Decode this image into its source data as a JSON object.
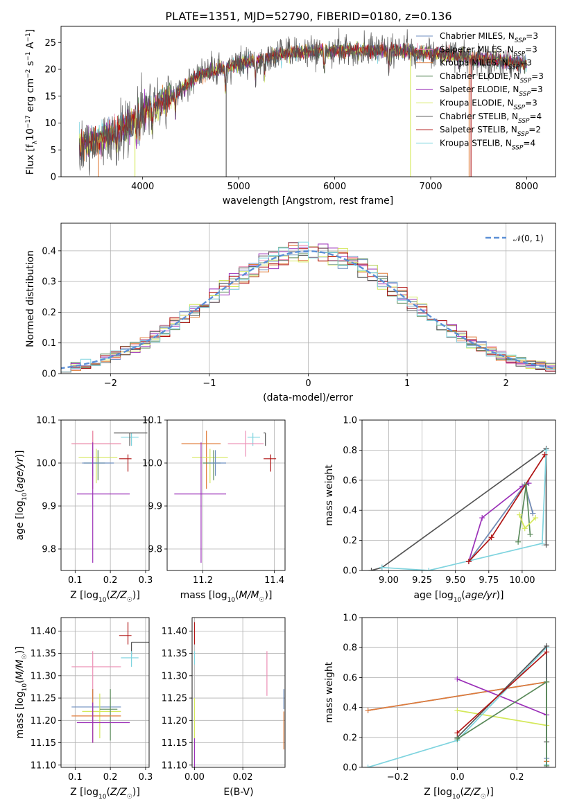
{
  "title": "PLATE=1351, MJD=52790, FIBERID=0180, z=0.136",
  "colors": {
    "chab_miles": "#6c8ebf",
    "salp_miles": "#ec8fb5",
    "krou_miles": "#e07b39",
    "chab_elodie": "#5a8a5a",
    "salp_elodie": "#9b30b8",
    "krou_elodie": "#d4e85a",
    "chab_stelib": "#555555",
    "salp_stelib": "#b01515",
    "krou_stelib": "#7fd4df",
    "gauss": "#5b8fd6"
  },
  "legend1": [
    {
      "key": "chab_miles",
      "label": "Chabrier MILES, NSSP=3"
    },
    {
      "key": "salp_miles",
      "label": "Salpeter MILES, NSSP=3"
    },
    {
      "key": "krou_miles",
      "label": "Kroupa MILES, NSSP=3"
    },
    {
      "key": "chab_elodie",
      "label": "Chabrier ELODIE, NSSP=3"
    },
    {
      "key": "salp_elodie",
      "label": "Salpeter ELODIE, NSSP=3"
    },
    {
      "key": "krou_elodie",
      "label": "Kroupa ELODIE, NSSP=3"
    },
    {
      "key": "chab_stelib",
      "label": "Chabrier STELIB, NSSP=4"
    },
    {
      "key": "salp_stelib",
      "label": "Salpeter STELIB, NSSP=2"
    },
    {
      "key": "krou_stelib",
      "label": "Kroupa STELIB, NSSP=4"
    }
  ],
  "legend2": {
    "label": "N(0,1)"
  },
  "chart_data": [
    {
      "id": "spectrum",
      "type": "line",
      "xlabel": "wavelength [Angstrom, rest frame]",
      "ylabel": "Flux [fλ10⁻¹⁷ erg cm⁻² s⁻¹ A⁻¹]",
      "xlim": [
        3150,
        8300
      ],
      "ylim": [
        0,
        28
      ],
      "xticks": [
        4000,
        5000,
        6000,
        7000,
        8000
      ],
      "yticks": [
        0,
        5,
        10,
        15,
        20,
        25
      ],
      "x_range": [
        3340,
        8000
      ],
      "continuum_x": [
        3340,
        3500,
        3800,
        4000,
        4300,
        4600,
        5000,
        5500,
        6000,
        6500,
        7000,
        7500,
        8000
      ],
      "continuum_y": [
        5.5,
        6.5,
        9,
        12,
        15,
        19,
        21,
        23,
        23.5,
        23.5,
        23,
        22,
        21
      ]
    },
    {
      "id": "residuals",
      "type": "bar",
      "xlabel": "(data-model)/error",
      "ylabel": "Normed distribution",
      "xlim": [
        -2.5,
        2.5
      ],
      "ylim": [
        0,
        0.49
      ],
      "xticks": [
        -2,
        -1,
        0,
        1,
        2
      ],
      "yticks": [
        0.0,
        0.1,
        0.2,
        0.3,
        0.4
      ],
      "bin_width": 0.1,
      "gaussian": {
        "mean": 0,
        "sigma": 1
      }
    },
    {
      "id": "age_vs_Z",
      "type": "scatter",
      "xlabel": "Z [log10(Z/Z☉)]",
      "ylabel": "age  [log10(age/yr)]",
      "xlim": [
        0.06,
        0.31
      ],
      "ylim": [
        9.75,
        10.1
      ],
      "xticks": [
        0.1,
        0.2,
        0.3
      ],
      "yticks": [
        9.8,
        9.9,
        10.0,
        10.1
      ],
      "points": [
        {
          "key": "krou_stelib",
          "x": 0.26,
          "y": 10.06,
          "xerr": [
            0.03,
            0.02
          ],
          "yerr": [
            0.02,
            0.01
          ]
        },
        {
          "key": "chab_stelib",
          "x": 0.255,
          "y": 10.07,
          "xerr": [
            0.045,
            0.05
          ],
          "yerr": [
            0.03,
            0.0
          ]
        },
        {
          "key": "salp_stelib",
          "x": 0.25,
          "y": 10.01,
          "xerr": [
            0.025,
            0.01
          ],
          "yerr": [
            0.03,
            0.01
          ]
        },
        {
          "key": "krou_miles",
          "x": 0.15,
          "y": 10.045,
          "xerr": [
            0.06,
            0.08
          ],
          "yerr": [
            0.105,
            0.03
          ]
        },
        {
          "key": "salp_miles",
          "x": 0.15,
          "y": 10.045,
          "xerr": [
            0.06,
            0.08
          ],
          "yerr": [
            0.1,
            0.03
          ]
        },
        {
          "key": "krou_elodie",
          "x": 0.16,
          "y": 10.013,
          "xerr": [
            0.05,
            0.06
          ],
          "yerr": [
            0.06,
            0.02
          ]
        },
        {
          "key": "chab_elodie",
          "x": 0.165,
          "y": 10.0,
          "xerr": [
            0.04,
            0.02
          ],
          "yerr": [
            0.04,
            0.03
          ]
        },
        {
          "key": "chab_miles",
          "x": 0.15,
          "y": 10.0,
          "xerr": [
            0.03,
            0.06
          ],
          "yerr": [
            0.03,
            0.03
          ]
        },
        {
          "key": "salp_elodie",
          "x": 0.15,
          "y": 9.928,
          "xerr": [
            0.045,
            0.105
          ],
          "yerr": [
            0.16,
            0.12
          ]
        }
      ]
    },
    {
      "id": "age_vs_mass",
      "type": "scatter",
      "xlabel": "mass [log10(M/M☉)]",
      "ylabel": "",
      "xlim": [
        11.1,
        11.43
      ],
      "ylim": [
        9.75,
        10.1
      ],
      "xticks": [
        11.2,
        11.4
      ],
      "yticks": [
        9.8,
        9.9,
        10.0,
        10.1
      ],
      "points": [
        {
          "key": "krou_stelib",
          "x": 11.34,
          "y": 10.06,
          "xerr": [
            0.015,
            0.02
          ],
          "yerr": [
            0.02,
            0.01
          ]
        },
        {
          "key": "chab_stelib",
          "x": 11.375,
          "y": 10.07,
          "xerr": [
            0.005,
            0.0
          ],
          "yerr": [
            0.03,
            0.0
          ]
        },
        {
          "key": "salp_stelib",
          "x": 11.39,
          "y": 10.01,
          "xerr": [
            0.02,
            0.015
          ],
          "yerr": [
            0.03,
            0.01
          ]
        },
        {
          "key": "krou_miles",
          "x": 11.21,
          "y": 10.045,
          "xerr": [
            0.07,
            0.04
          ],
          "yerr": [
            0.105,
            0.03
          ]
        },
        {
          "key": "salp_miles",
          "x": 11.32,
          "y": 10.045,
          "xerr": [
            0.05,
            0.05
          ],
          "yerr": [
            0.03,
            0.03
          ]
        },
        {
          "key": "krou_elodie",
          "x": 11.22,
          "y": 10.013,
          "xerr": [
            0.05,
            0.05
          ],
          "yerr": [
            0.06,
            0.02
          ]
        },
        {
          "key": "chab_elodie",
          "x": 11.23,
          "y": 10.0,
          "xerr": [
            0.03,
            0.02
          ],
          "yerr": [
            0.04,
            0.03
          ]
        },
        {
          "key": "chab_miles",
          "x": 11.235,
          "y": 10.0,
          "xerr": [
            0.02,
            0.03
          ],
          "yerr": [
            0.03,
            0.03
          ]
        },
        {
          "key": "salp_elodie",
          "x": 11.195,
          "y": 9.928,
          "xerr": [
            0.075,
            0.07
          ],
          "yerr": [
            0.16,
            0.12
          ]
        }
      ]
    },
    {
      "id": "weight_vs_age",
      "type": "line",
      "xlabel": "age  [log10(age/yr)]",
      "ylabel": "mass weight",
      "xlim": [
        8.8,
        10.25
      ],
      "ylim": [
        0.0,
        1.0
      ],
      "xticks": [
        9.0,
        9.25,
        9.5,
        9.75,
        10.0
      ],
      "yticks": [
        0.0,
        0.2,
        0.4,
        0.6,
        0.8,
        1.0
      ],
      "series": [
        {
          "key": "chab_stelib",
          "x": [
            8.87,
            8.95,
            10.18,
            10.18
          ],
          "y": [
            0.0,
            0.02,
            0.81,
            0.17
          ]
        },
        {
          "key": "krou_stelib",
          "x": [
            8.95,
            9.3,
            10.15,
            10.18,
            10.18
          ],
          "y": [
            0.02,
            0.0,
            0.18,
            0.8,
            0.8
          ]
        },
        {
          "key": "salp_elodie",
          "x": [
            9.6,
            9.7,
            10.0,
            10.05
          ],
          "y": [
            0.06,
            0.35,
            0.56,
            0.58
          ]
        },
        {
          "key": "krou_miles",
          "x": [
            9.6,
            10.02,
            10.08
          ],
          "y": [
            0.06,
            0.57,
            0.38
          ]
        },
        {
          "key": "chab_miles",
          "x": [
            9.6,
            10.02,
            10.08
          ],
          "y": [
            0.06,
            0.57,
            0.38
          ]
        },
        {
          "key": "salp_stelib",
          "x": [
            9.6,
            9.77,
            10.17
          ],
          "y": [
            0.06,
            0.22,
            0.77
          ]
        },
        {
          "key": "chab_elodie",
          "x": [
            9.97,
            10.03,
            10.06
          ],
          "y": [
            0.19,
            0.57,
            0.24
          ]
        },
        {
          "key": "krou_elodie",
          "x": [
            9.98,
            10.02,
            10.1
          ],
          "y": [
            0.37,
            0.28,
            0.35
          ]
        }
      ]
    },
    {
      "id": "mass_vs_Z",
      "type": "scatter",
      "xlabel": "Z [log10(Z/Z☉)]",
      "ylabel": "mass [log10(M/M☉)]",
      "xlim": [
        0.06,
        0.31
      ],
      "ylim": [
        11.095,
        11.43
      ],
      "xticks": [
        0.1,
        0.2,
        0.3
      ],
      "yticks": [
        11.1,
        11.15,
        11.2,
        11.25,
        11.3,
        11.35,
        11.4
      ],
      "points": [
        {
          "key": "salp_stelib",
          "x": 0.25,
          "y": 11.39,
          "xerr": [
            0.025,
            0.01
          ],
          "yerr": [
            0.02,
            0.03
          ]
        },
        {
          "key": "chab_stelib",
          "x": 0.26,
          "y": 11.375,
          "xerr": [
            0.0,
            0.05
          ],
          "yerr": [
            0.03,
            0.0
          ]
        },
        {
          "key": "krou_stelib",
          "x": 0.26,
          "y": 11.34,
          "xerr": [
            0.03,
            0.02
          ],
          "yerr": [
            0.02,
            0.015
          ]
        },
        {
          "key": "salp_miles",
          "x": 0.15,
          "y": 11.32,
          "xerr": [
            0.06,
            0.08
          ],
          "yerr": [
            0.07,
            0.035
          ]
        },
        {
          "key": "chab_miles",
          "x": 0.15,
          "y": 11.23,
          "xerr": [
            0.06,
            0.08
          ],
          "yerr": [
            0.03,
            0.04
          ]
        },
        {
          "key": "krou_elodie",
          "x": 0.17,
          "y": 11.22,
          "xerr": [
            0.05,
            0.06
          ],
          "yerr": [
            0.06,
            0.04
          ]
        },
        {
          "key": "chab_elodie",
          "x": 0.2,
          "y": 11.225,
          "xerr": [
            0.03,
            0.02
          ],
          "yerr": [
            0.07,
            0.045
          ]
        },
        {
          "key": "krou_miles",
          "x": 0.15,
          "y": 11.21,
          "xerr": [
            0.06,
            0.08
          ],
          "yerr": [
            0.06,
            0.06
          ]
        },
        {
          "key": "salp_elodie",
          "x": 0.15,
          "y": 11.195,
          "xerr": [
            0.045,
            0.105
          ],
          "yerr": [
            0.045,
            0.045
          ]
        }
      ]
    },
    {
      "id": "mass_vs_EBV",
      "type": "scatter",
      "xlabel": "E(B-V)",
      "ylabel": "",
      "xlim": [
        -0.001,
        0.0375
      ],
      "ylim": [
        11.095,
        11.43
      ],
      "xticks": [
        0.0,
        0.02
      ],
      "yticks": [
        11.1,
        11.15,
        11.2,
        11.25,
        11.3,
        11.35,
        11.4
      ],
      "points": [
        {
          "key": "salp_stelib",
          "x": 0.0,
          "y": 11.39,
          "yerr": [
            0.02,
            0.03
          ]
        },
        {
          "key": "krou_stelib",
          "x": 0.0,
          "y": 11.34,
          "yerr": [
            0.015,
            0.015
          ]
        },
        {
          "key": "salp_miles",
          "x": 0.03,
          "y": 11.3,
          "yerr": [
            0.045,
            0.055
          ]
        },
        {
          "key": "krou_elodie",
          "x": 0.0,
          "y": 11.21,
          "yerr": [
            0.05,
            0.04
          ]
        },
        {
          "key": "chab_miles",
          "x": 0.037,
          "y": 11.24,
          "yerr": [
            0.015,
            0.03
          ]
        },
        {
          "key": "krou_miles",
          "x": 0.037,
          "y": 11.19,
          "yerr": [
            0.055,
            0.03
          ]
        },
        {
          "key": "salp_elodie",
          "x": 0.0,
          "y": 11.13,
          "yerr": [
            0.035,
            0.03
          ]
        }
      ]
    },
    {
      "id": "weight_vs_Z",
      "type": "line",
      "xlabel": "Z [log10(Z/Z☉)]",
      "ylabel": "mass weight",
      "xlim": [
        -0.32,
        0.33
      ],
      "ylim": [
        0.0,
        1.0
      ],
      "xticks": [
        -0.2,
        0.0,
        0.2
      ],
      "yticks": [
        0.0,
        0.2,
        0.4,
        0.6,
        0.8,
        1.0
      ],
      "series": [
        {
          "key": "chab_miles",
          "x": [
            -0.3,
            0.3,
            0.3
          ],
          "y": [
            0.38,
            0.57,
            0.06
          ]
        },
        {
          "key": "krou_miles",
          "x": [
            -0.3,
            0.3,
            0.3
          ],
          "y": [
            0.38,
            0.57,
            0.04
          ]
        },
        {
          "key": "salp_elodie",
          "x": [
            0.0,
            0.3,
            0.3
          ],
          "y": [
            0.59,
            0.35,
            0.0
          ]
        },
        {
          "key": "krou_elodie",
          "x": [
            0.0,
            0.3
          ],
          "y": [
            0.38,
            0.28
          ]
        },
        {
          "key": "krou_stelib",
          "x": [
            -0.3,
            0.0,
            0.3,
            0.3
          ],
          "y": [
            0.0,
            0.18,
            0.8,
            0.02
          ]
        },
        {
          "key": "chab_stelib",
          "x": [
            0.0,
            0.3,
            0.3
          ],
          "y": [
            0.2,
            0.81,
            0.17
          ]
        },
        {
          "key": "salp_stelib",
          "x": [
            0.0,
            0.3
          ],
          "y": [
            0.23,
            0.77
          ]
        },
        {
          "key": "chab_elodie",
          "x": [
            0.0,
            0.3,
            0.3
          ],
          "y": [
            0.19,
            0.57,
            0.01
          ]
        }
      ]
    }
  ]
}
